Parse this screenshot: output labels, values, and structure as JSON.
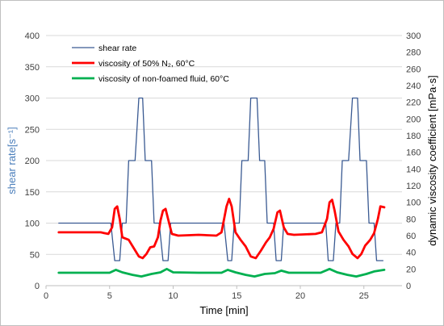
{
  "chart_data": {
    "type": "line",
    "xlabel": "Time [min]",
    "ylabel_left": "shear rate[s⁻¹]",
    "ylabel_right": "dynamic viscosity coefficient [mPa·s]",
    "xlim": [
      0,
      28
    ],
    "ylim_left": [
      0,
      400
    ],
    "ylim_right": [
      0,
      300
    ],
    "x_ticks": [
      "0",
      "5",
      "10",
      "15",
      "20",
      "25"
    ],
    "y_left_ticks": [
      "0",
      "50",
      "100",
      "150",
      "200",
      "250",
      "300",
      "350",
      "400"
    ],
    "y_right_ticks": [
      "0",
      "20",
      "40",
      "60",
      "80",
      "100",
      "120",
      "140",
      "160",
      "180",
      "200",
      "220",
      "240",
      "260",
      "280",
      "300"
    ],
    "grid": true,
    "legend_position": "top-left",
    "series": [
      {
        "name": "shear rate",
        "axis": "left",
        "color": "#3a5a92",
        "points": [
          [
            1,
            100
          ],
          [
            5.1,
            100
          ],
          [
            5.4,
            40
          ],
          [
            5.8,
            40
          ],
          [
            6,
            100
          ],
          [
            6.3,
            100
          ],
          [
            6.5,
            200
          ],
          [
            7,
            200
          ],
          [
            7.3,
            300
          ],
          [
            7.6,
            300
          ],
          [
            7.8,
            200
          ],
          [
            8.3,
            200
          ],
          [
            8.5,
            100
          ],
          [
            8.9,
            100
          ],
          [
            9.2,
            40
          ],
          [
            9.6,
            40
          ],
          [
            9.8,
            100
          ],
          [
            14,
            100
          ],
          [
            14.3,
            40
          ],
          [
            14.6,
            40
          ],
          [
            14.8,
            100
          ],
          [
            15.2,
            100
          ],
          [
            15.4,
            200
          ],
          [
            15.9,
            200
          ],
          [
            16.1,
            300
          ],
          [
            16.6,
            300
          ],
          [
            16.8,
            200
          ],
          [
            17.2,
            200
          ],
          [
            17.4,
            100
          ],
          [
            17.9,
            100
          ],
          [
            18.1,
            40
          ],
          [
            18.5,
            40
          ],
          [
            18.7,
            100
          ],
          [
            22,
            100
          ],
          [
            22.2,
            40
          ],
          [
            22.6,
            40
          ],
          [
            22.8,
            100
          ],
          [
            23.1,
            100
          ],
          [
            23.3,
            200
          ],
          [
            23.8,
            200
          ],
          [
            24.1,
            300
          ],
          [
            24.5,
            300
          ],
          [
            24.7,
            200
          ],
          [
            25.2,
            200
          ],
          [
            25.4,
            100
          ],
          [
            25.8,
            100
          ],
          [
            26,
            40
          ],
          [
            26.5,
            40
          ]
        ]
      },
      {
        "name": "viscosity of 50% N₂, 60°C",
        "axis": "right",
        "color": "#ff0000",
        "points": [
          [
            1,
            64
          ],
          [
            4.3,
            64
          ],
          [
            4.9,
            62
          ],
          [
            5.2,
            70
          ],
          [
            5.4,
            92
          ],
          [
            5.6,
            95
          ],
          [
            5.8,
            80
          ],
          [
            6,
            58
          ],
          [
            6.5,
            55
          ],
          [
            6.9,
            45
          ],
          [
            7.3,
            35
          ],
          [
            7.6,
            33
          ],
          [
            7.9,
            38
          ],
          [
            8.2,
            46
          ],
          [
            8.5,
            47
          ],
          [
            8.8,
            58
          ],
          [
            9,
            78
          ],
          [
            9.2,
            90
          ],
          [
            9.4,
            92
          ],
          [
            9.6,
            80
          ],
          [
            9.9,
            62
          ],
          [
            10.4,
            60
          ],
          [
            12,
            61
          ],
          [
            13.4,
            60
          ],
          [
            13.8,
            64
          ],
          [
            14.2,
            95
          ],
          [
            14.4,
            104
          ],
          [
            14.6,
            95
          ],
          [
            14.9,
            64
          ],
          [
            15.3,
            55
          ],
          [
            15.7,
            47
          ],
          [
            16.1,
            35
          ],
          [
            16.5,
            33
          ],
          [
            16.9,
            42
          ],
          [
            17.3,
            52
          ],
          [
            17.6,
            58
          ],
          [
            17.9,
            68
          ],
          [
            18.2,
            88
          ],
          [
            18.4,
            90
          ],
          [
            18.7,
            70
          ],
          [
            19,
            62
          ],
          [
            19.5,
            61
          ],
          [
            21.2,
            62
          ],
          [
            21.7,
            64
          ],
          [
            22.1,
            80
          ],
          [
            22.3,
            100
          ],
          [
            22.5,
            103
          ],
          [
            22.7,
            90
          ],
          [
            23,
            65
          ],
          [
            23.4,
            55
          ],
          [
            23.8,
            47
          ],
          [
            24.1,
            38
          ],
          [
            24.5,
            33
          ],
          [
            24.8,
            38
          ],
          [
            25.1,
            48
          ],
          [
            25.5,
            55
          ],
          [
            25.8,
            63
          ],
          [
            26.1,
            80
          ],
          [
            26.3,
            95
          ],
          [
            26.6,
            94
          ]
        ]
      },
      {
        "name": "viscosity of non-foamed fluid, 60°C",
        "axis": "right",
        "color": "#00b050",
        "points": [
          [
            1,
            15.5
          ],
          [
            5,
            15.5
          ],
          [
            5.5,
            19
          ],
          [
            6,
            16
          ],
          [
            6.8,
            13
          ],
          [
            7.5,
            11
          ],
          [
            8.3,
            14
          ],
          [
            9,
            16
          ],
          [
            9.5,
            20
          ],
          [
            10,
            16
          ],
          [
            12,
            15.5
          ],
          [
            13.8,
            15.5
          ],
          [
            14.3,
            19
          ],
          [
            14.9,
            16
          ],
          [
            15.7,
            13
          ],
          [
            16.4,
            11
          ],
          [
            17.2,
            14
          ],
          [
            18,
            15
          ],
          [
            18.5,
            18
          ],
          [
            19.1,
            15.5
          ],
          [
            21.6,
            15.5
          ],
          [
            22.3,
            20
          ],
          [
            22.9,
            16
          ],
          [
            23.7,
            13
          ],
          [
            24.4,
            11
          ],
          [
            25.2,
            14
          ],
          [
            25.8,
            17
          ],
          [
            26.6,
            19
          ]
        ]
      }
    ]
  }
}
